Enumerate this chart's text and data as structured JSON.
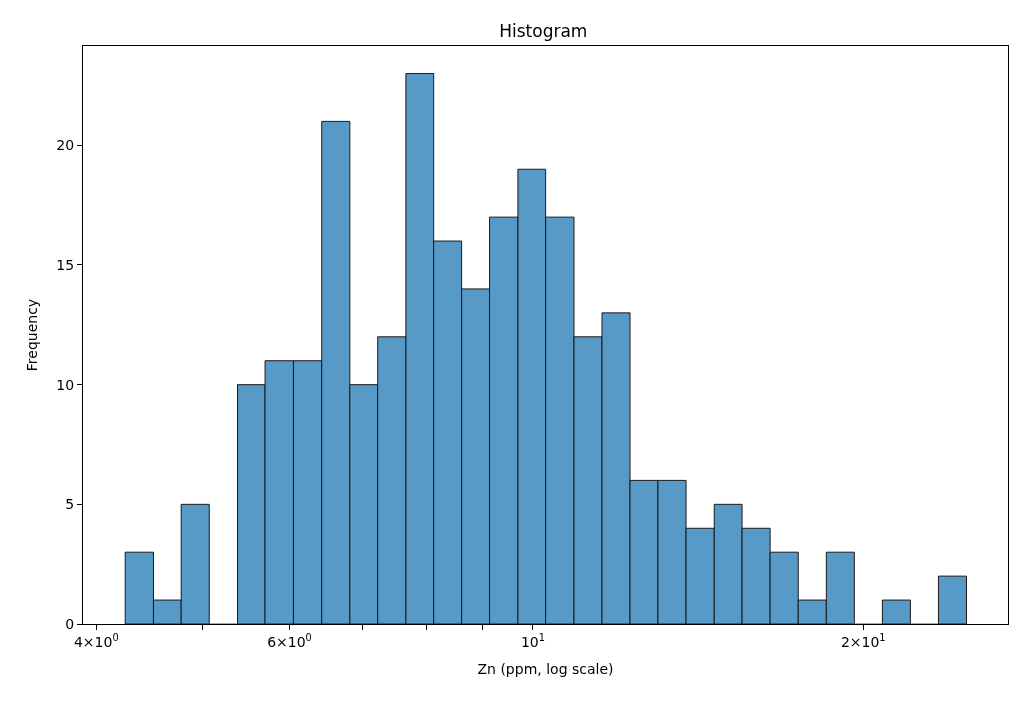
{
  "chart_data": {
    "type": "histogram",
    "title": "Histogram",
    "xlabel": "Zn (ppm, log scale)",
    "ylabel": "Frequency",
    "log": "x",
    "color": "#5799c7",
    "bins": [
      4.25,
      4.51,
      4.78,
      5.07,
      5.38,
      5.7,
      6.05,
      6.42,
      6.81,
      7.22,
      7.66,
      8.12,
      8.61,
      9.13,
      9.69,
      10.27,
      10.9,
      11.56,
      12.26,
      13.0,
      13.79,
      14.63,
      15.51,
      16.45,
      17.45,
      18.51,
      19.63,
      20.82,
      22.08,
      23.42,
      24.84
    ],
    "values": [
      3,
      1,
      5,
      0,
      10,
      11,
      11,
      21,
      10,
      12,
      23,
      16,
      14,
      17,
      19,
      17,
      12,
      13,
      6,
      6,
      4,
      5,
      4,
      3,
      1,
      3,
      0,
      1,
      0,
      2
    ],
    "xlim": [
      3.89,
      27.1
    ],
    "xticks": [
      {
        "value": 4,
        "label": "4×10$^{0}$"
      },
      {
        "value": 5,
        "label": null
      },
      {
        "value": 6,
        "label": "6×10$^{0}$"
      },
      {
        "value": 7,
        "label": null
      },
      {
        "value": 8,
        "label": null
      },
      {
        "value": 9,
        "label": null
      },
      {
        "value": 10,
        "label": "10$^{1}$"
      },
      {
        "value": 20,
        "label": "2×10$^{1}$"
      }
    ],
    "ylim": [
      0,
      24.15
    ],
    "yticks": [
      0,
      5,
      10,
      15,
      20
    ]
  }
}
